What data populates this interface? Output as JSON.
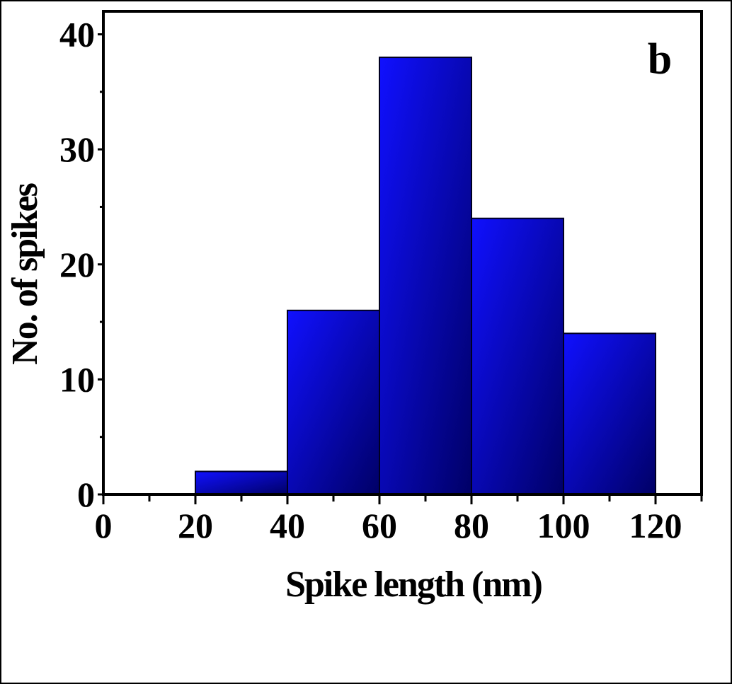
{
  "chart_data": {
    "type": "bar",
    "panel_label": "b",
    "title": "",
    "xlabel": "Spike length (nm)",
    "ylabel": "No. of spikes",
    "xlim": [
      0,
      130
    ],
    "ylim": [
      0,
      42
    ],
    "x_ticks": [
      0,
      20,
      40,
      60,
      80,
      100,
      120
    ],
    "y_ticks": [
      0,
      10,
      20,
      30,
      40
    ],
    "x_minor_step": 10,
    "y_minor_step": 5,
    "bins": [
      {
        "start": 20,
        "end": 40,
        "value": 2
      },
      {
        "start": 40,
        "end": 60,
        "value": 16
      },
      {
        "start": 60,
        "end": 80,
        "value": 38
      },
      {
        "start": 80,
        "end": 100,
        "value": 24
      },
      {
        "start": 100,
        "end": 120,
        "value": 14
      }
    ],
    "bar_color_light": "#1010ff",
    "bar_color_dark": "#000066",
    "grid": false,
    "legend": "none"
  }
}
